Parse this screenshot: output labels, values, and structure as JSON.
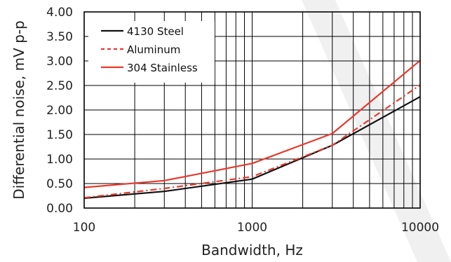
{
  "chart_data": {
    "type": "line",
    "title": "",
    "xlabel": "Bandwidth, Hz",
    "ylabel": "Differential noise, mV p-p",
    "x_scale": "log",
    "xlim": [
      100,
      10000
    ],
    "ylim": [
      0,
      4
    ],
    "x_tick_labels": [
      "100",
      "1000",
      "10000"
    ],
    "y_tick_labels": [
      "0.00",
      "0.50",
      "1.00",
      "1.50",
      "2.00",
      "2.50",
      "3.00",
      "3.50",
      "4.00"
    ],
    "grid": true,
    "legend_position": "top-left",
    "x": [
      100,
      300,
      1000,
      3000,
      10000
    ],
    "series": [
      {
        "name": "4130 Steel",
        "color": "#111111",
        "style": "solid",
        "values": [
          0.2,
          0.34,
          0.59,
          1.28,
          2.27
        ]
      },
      {
        "name": "Aluminum",
        "color": "#e8392d",
        "style": "dashed",
        "values": [
          0.21,
          0.4,
          0.64,
          1.28,
          2.51
        ]
      },
      {
        "name": "304 Stainless",
        "color": "#e8392d",
        "style": "solid",
        "values": [
          0.42,
          0.56,
          0.91,
          1.52,
          3.01
        ]
      }
    ]
  }
}
